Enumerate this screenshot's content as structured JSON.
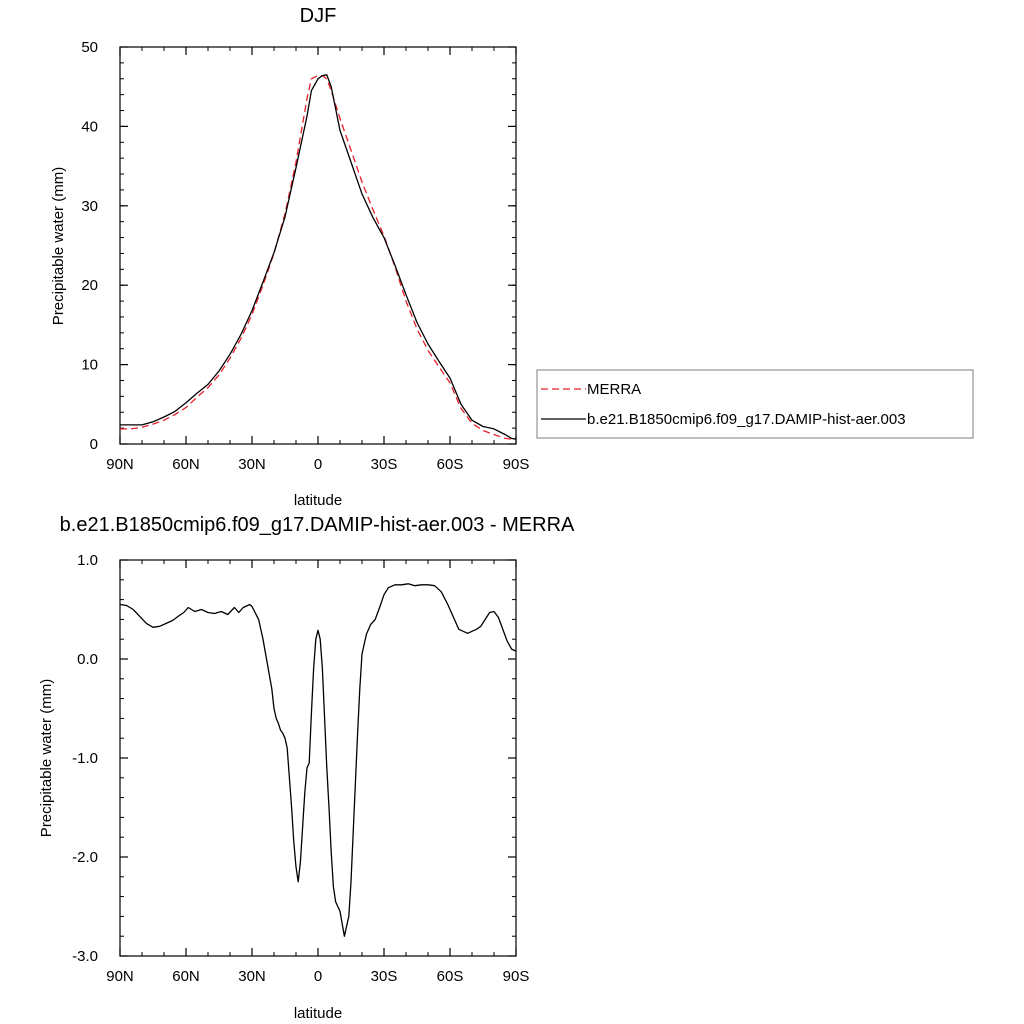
{
  "chart_data": [
    {
      "type": "line",
      "title": "DJF",
      "xlabel": "latitude",
      "ylabel": "Precipitable water (mm)",
      "xlim": [
        90,
        -90
      ],
      "ylim": [
        0,
        50
      ],
      "x_ticks": [
        90,
        60,
        30,
        0,
        -30,
        -60,
        -90
      ],
      "x_tick_labels": [
        "90N",
        "60N",
        "30N",
        "0",
        "30S",
        "60S",
        "90S"
      ],
      "y_ticks": [
        0,
        10,
        20,
        30,
        40,
        50
      ],
      "y_tick_labels": [
        "0",
        "10",
        "20",
        "30",
        "40",
        "50"
      ],
      "legend_position": "right",
      "series": [
        {
          "name": "MERRA",
          "color": "#e8202a",
          "style": "dashed",
          "x": [
            90,
            85,
            80,
            75,
            70,
            65,
            60,
            55,
            50,
            45,
            40,
            35,
            30,
            25,
            20,
            15,
            10,
            5,
            3,
            0,
            -2,
            -4,
            -6,
            -10,
            -15,
            -20,
            -25,
            -30,
            -35,
            -40,
            -45,
            -50,
            -55,
            -60,
            -65,
            -70,
            -75,
            -80,
            -85,
            -88,
            -90
          ],
          "y": [
            1.9,
            1.9,
            2.1,
            2.5,
            3.0,
            3.7,
            4.6,
            5.9,
            7.1,
            8.7,
            10.8,
            13.3,
            16.3,
            20.0,
            24.0,
            29.0,
            35.5,
            43.5,
            46.0,
            46.4,
            46.4,
            46.0,
            44.5,
            41.0,
            37.0,
            33.0,
            29.5,
            26.2,
            22.3,
            18.0,
            14.5,
            11.8,
            9.7,
            7.7,
            4.5,
            2.6,
            1.7,
            1.2,
            0.7,
            0.6,
            0.6
          ]
        },
        {
          "name": "b.e21.B1850cmip6.f09_g17.DAMIP-hist-aer.003",
          "color": "#000000",
          "style": "solid",
          "x": [
            90,
            85,
            80,
            75,
            70,
            65,
            60,
            55,
            50,
            45,
            40,
            35,
            30,
            25,
            20,
            15,
            10,
            5,
            3,
            0,
            -2,
            -4,
            -6,
            -10,
            -15,
            -20,
            -25,
            -30,
            -35,
            -40,
            -45,
            -50,
            -55,
            -60,
            -65,
            -70,
            -75,
            -80,
            -85,
            -88,
            -90
          ],
          "y": [
            2.4,
            2.4,
            2.4,
            2.8,
            3.4,
            4.1,
            5.2,
            6.4,
            7.5,
            9.2,
            11.3,
            13.8,
            16.8,
            20.4,
            24.1,
            28.6,
            34.8,
            41.3,
            44.5,
            46.0,
            46.4,
            46.5,
            45.0,
            39.5,
            35.5,
            31.5,
            28.5,
            26.0,
            22.5,
            18.8,
            15.3,
            12.6,
            10.4,
            8.3,
            5.0,
            3.0,
            2.2,
            1.9,
            1.2,
            0.7,
            0.6
          ]
        }
      ]
    },
    {
      "type": "line",
      "title": "b.e21.B1850cmip6.f09_g17.DAMIP-hist-aer.003 - MERRA",
      "xlabel": "latitude",
      "ylabel": "Precipitable water (mm)",
      "xlim": [
        90,
        -90
      ],
      "ylim": [
        -3.0,
        1.0
      ],
      "x_ticks": [
        90,
        60,
        30,
        0,
        -30,
        -60,
        -90
      ],
      "x_tick_labels": [
        "90N",
        "60N",
        "30N",
        "0",
        "30S",
        "60S",
        "90S"
      ],
      "y_ticks": [
        1.0,
        0.0,
        -1.0,
        -2.0,
        -3.0
      ],
      "y_tick_labels": [
        "1.0",
        "0.0",
        "-1.0",
        "-2.0",
        "-3.0"
      ],
      "series": [
        {
          "color": "#000000",
          "style": "solid",
          "x": [
            90,
            87,
            84,
            81,
            78,
            75,
            72,
            69,
            66,
            63,
            61,
            59,
            56,
            53,
            50,
            47,
            44,
            41,
            38,
            36,
            34,
            31,
            30,
            27,
            25,
            23,
            21,
            20,
            19,
            18,
            17,
            16,
            15,
            14,
            13,
            12,
            11,
            10,
            9,
            8,
            7,
            6,
            5,
            4,
            3,
            2,
            1,
            0,
            -1,
            -2,
            -3,
            -4,
            -5,
            -6,
            -7,
            -8,
            -10,
            -12,
            -14,
            -15,
            -16,
            -17,
            -18,
            -19,
            -20,
            -22,
            -24,
            -26,
            -28,
            -30,
            -32,
            -35,
            -38,
            -41,
            -44,
            -47,
            -50,
            -53,
            -56,
            -59,
            -62,
            -64,
            -66,
            -68,
            -70,
            -72,
            -74,
            -76,
            -78,
            -80,
            -82,
            -84,
            -86,
            -88,
            -90
          ],
          "y": [
            0.55,
            0.54,
            0.5,
            0.43,
            0.36,
            0.32,
            0.33,
            0.36,
            0.39,
            0.44,
            0.47,
            0.52,
            0.48,
            0.5,
            0.47,
            0.46,
            0.48,
            0.45,
            0.52,
            0.47,
            0.52,
            0.55,
            0.53,
            0.4,
            0.2,
            -0.05,
            -0.3,
            -0.5,
            -0.6,
            -0.65,
            -0.72,
            -0.75,
            -0.8,
            -0.9,
            -1.2,
            -1.5,
            -1.85,
            -2.1,
            -2.25,
            -2.05,
            -1.7,
            -1.35,
            -1.1,
            -1.05,
            -0.55,
            -0.1,
            0.2,
            0.29,
            0.2,
            -0.1,
            -0.6,
            -1.1,
            -1.5,
            -1.95,
            -2.3,
            -2.45,
            -2.55,
            -2.8,
            -2.6,
            -2.25,
            -1.75,
            -1.25,
            -0.75,
            -0.3,
            0.05,
            0.25,
            0.35,
            0.4,
            0.52,
            0.65,
            0.72,
            0.75,
            0.75,
            0.76,
            0.74,
            0.75,
            0.75,
            0.74,
            0.68,
            0.55,
            0.4,
            0.3,
            0.28,
            0.26,
            0.28,
            0.3,
            0.33,
            0.4,
            0.47,
            0.48,
            0.42,
            0.3,
            0.18,
            0.1,
            0.08
          ]
        }
      ]
    }
  ]
}
